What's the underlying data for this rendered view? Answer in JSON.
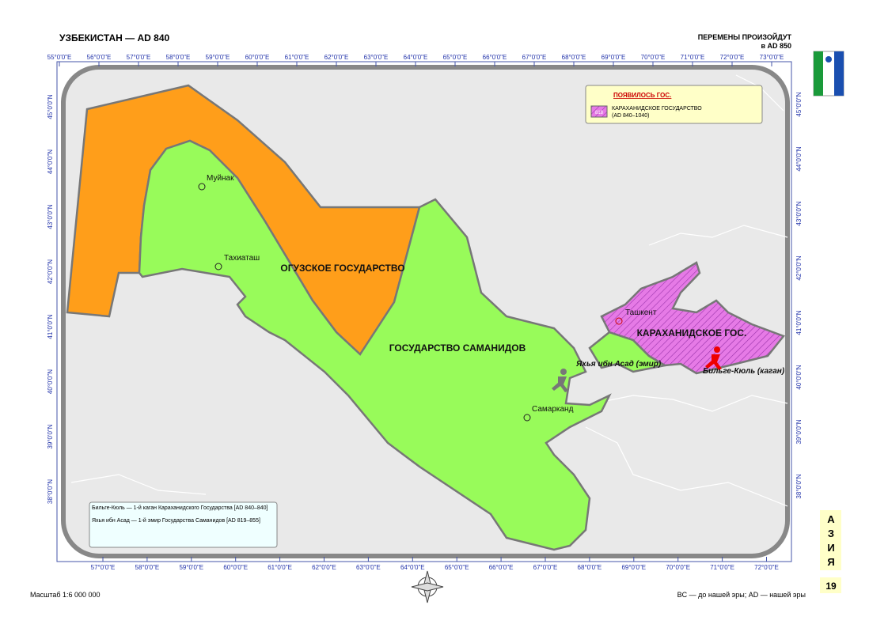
{
  "header": {
    "title": "УЗБЕКИСТАН — AD 840",
    "changes": "ПЕРЕМЕНЫ ПРОИЗОЙДУТ",
    "changes_date": "в AD 850"
  },
  "graticule": {
    "top": [
      "55°0'0\"E",
      "56°0'0\"E",
      "57°0'0\"E",
      "58°0'0\"E",
      "59°0'0\"E",
      "60°0'0\"E",
      "61°0'0\"E",
      "62°0'0\"E",
      "63°0'0\"E",
      "64°0'0\"E",
      "65°0'0\"E",
      "66°0'0\"E",
      "67°0'0\"E",
      "68°0'0\"E",
      "69°0'0\"E",
      "70°0'0\"E",
      "71°0'0\"E",
      "72°0'0\"E",
      "73°0'0\"E"
    ],
    "bottom": [
      "57°0'0\"E",
      "58°0'0\"E",
      "59°0'0\"E",
      "60°0'0\"E",
      "61°0'0\"E",
      "62°0'0\"E",
      "63°0'0\"E",
      "64°0'0\"E",
      "65°0'0\"E",
      "66°0'0\"E",
      "67°0'0\"E",
      "68°0'0\"E",
      "69°0'0\"E",
      "70°0'0\"E",
      "71°0'0\"E",
      "72°0'0\"E"
    ],
    "left": [
      "45°0'0\"N",
      "44°0'0\"N",
      "43°0'0\"N",
      "42°0'0\"N",
      "41°0'0\"N",
      "40°0'0\"N",
      "39°0'0\"N",
      "38°0'0\"N"
    ],
    "right": [
      "45°0'0\"N",
      "44°0'0\"N",
      "43°0'0\"N",
      "42°0'0\"N",
      "41°0'0\"N",
      "40°0'0\"N",
      "39°0'0\"N",
      "38°0'0\"N"
    ]
  },
  "regions": {
    "oguz": "ОГУЗСКОЕ ГОСУДАРСТВО",
    "samanid": "ГОСУДАРСТВО САМАНИДОВ",
    "karakhanid": "КАРАХАНИДСКОЕ ГОС."
  },
  "cities": {
    "muynak": "Муйнак",
    "takhiatash": "Тахиаташ",
    "samarkand": "Самарканд",
    "tashkent": "Ташкент"
  },
  "rulers": {
    "yahya": "Яхья ибн Асад (эмир)",
    "bilge": "Бильге-Кюль (каган)"
  },
  "legend": {
    "heading": "ПОЯВИЛОСЬ ГОС.",
    "code": "818",
    "name": "КАРАХАНИДСКОЕ ГОСУДАРСТВО",
    "dates": "(AD 840–1040)"
  },
  "notes": [
    "Бильге-Кюль — 1-й каган Караханидского Государства [AD 840–840]",
    "Яхья ибн Асад — 1-й эмир Государства Саманидов [AD 819–855]"
  ],
  "side": {
    "letters": [
      "А",
      "З",
      "И",
      "Я"
    ],
    "page": "19"
  },
  "footer": {
    "scale": "Масштаб 1:6 000 000",
    "era_note": "BC — до нашей эры; AD — нашей эры"
  }
}
